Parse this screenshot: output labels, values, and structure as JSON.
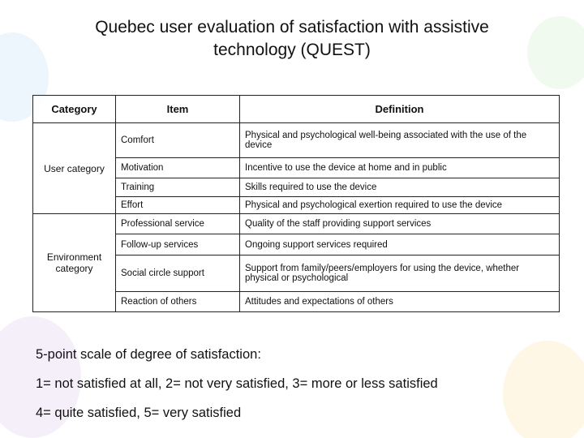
{
  "title": "Quebec user evaluation of satisfaction with assistive technology (QUEST)",
  "table": {
    "headers": [
      "Category",
      "Item",
      "Definition"
    ],
    "groups": [
      {
        "category": "User category",
        "rows": [
          [
            "Comfort",
            "Physical and psychological well-being associated with the use of the device"
          ],
          [
            "Motivation",
            "Incentive to use the device at home and in public"
          ],
          [
            "Training",
            "Skills required to use the device"
          ],
          [
            "Effort",
            "Physical and psychological exertion required to use the device"
          ]
        ]
      },
      {
        "category": "Environment category",
        "rows": [
          [
            "Professional service",
            "Quality of the staff providing support services"
          ],
          [
            "Follow-up services",
            "Ongoing support services required"
          ],
          [
            "Social circle support",
            "Support from family/peers/employers for using the device, whether physical or psychological"
          ],
          [
            "Reaction of others",
            "Attitudes and expectations of others"
          ]
        ]
      }
    ]
  },
  "scale": {
    "heading": "5-point scale of degree of satisfaction:",
    "lines": [
      "1= not satisfied at all,  2= not very satisfied,  3= more or less satisfied",
      "4= quite satisfied,  5= very satisfied"
    ]
  }
}
